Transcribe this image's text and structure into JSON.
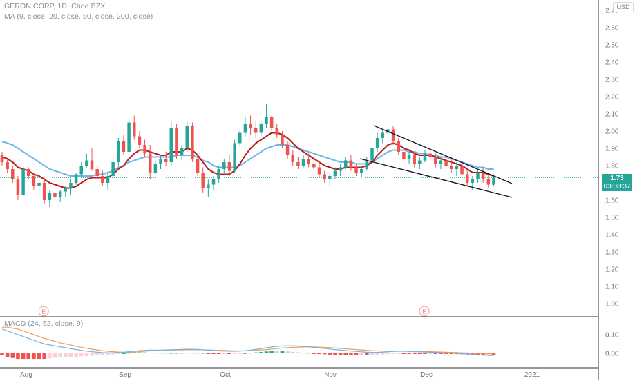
{
  "header": {
    "symbol_line": "GERON CORP, 1D, Cboe BZX",
    "ma_line": "MA (9, close, 20, close, 50, close, 200, close)",
    "currency_button": "USD"
  },
  "price_scale": {
    "last_price": "1.73",
    "countdown": "03:08:37"
  },
  "macd_pane": {
    "label": "MACD (24, 52, close, 9)"
  },
  "earnings_marker_text": "E",
  "colors": {
    "up": "#26a69a",
    "down": "#ef5350",
    "ma_fast": "#b71c1c",
    "ma_slow": "#6fb6e6",
    "macd_line": "#6fb6e6",
    "signal_line": "#f39c53",
    "hist_up": "#26a69a",
    "hist_up_light": "#b2dfdb",
    "hist_down": "#ef5350",
    "hist_down_light": "#ffcdd2",
    "last_price_bg": "#26a69a"
  },
  "chart_data": [
    {
      "type": "candlestick",
      "title": "GERON CORP, 1D, Cboe BZX",
      "x_tick_labels": [
        "Aug",
        "Sep",
        "Oct",
        "Nov",
        "Dec",
        "2021"
      ],
      "y_tick_labels": [
        "1.00",
        "1.10",
        "1.20",
        "1.30",
        "1.40",
        "1.50",
        "1.60",
        "1.70",
        "1.80",
        "1.90",
        "2.00",
        "2.10",
        "2.20",
        "2.30",
        "2.40",
        "2.50",
        "2.60",
        "2.70"
      ],
      "ylim": [
        0.93,
        2.72
      ],
      "last_price": 1.73,
      "candles": [
        [
          1.86,
          1.88,
          1.8,
          1.82
        ],
        [
          1.82,
          1.84,
          1.76,
          1.78
        ],
        [
          1.78,
          1.8,
          1.7,
          1.72
        ],
        [
          1.72,
          1.74,
          1.6,
          1.63
        ],
        [
          1.63,
          1.8,
          1.62,
          1.78
        ],
        [
          1.78,
          1.79,
          1.72,
          1.74
        ],
        [
          1.74,
          1.76,
          1.66,
          1.68
        ],
        [
          1.68,
          1.72,
          1.64,
          1.7
        ],
        [
          1.7,
          1.73,
          1.58,
          1.6
        ],
        [
          1.6,
          1.66,
          1.56,
          1.64
        ],
        [
          1.64,
          1.67,
          1.6,
          1.62
        ],
        [
          1.62,
          1.66,
          1.59,
          1.65
        ],
        [
          1.65,
          1.68,
          1.62,
          1.67
        ],
        [
          1.67,
          1.72,
          1.63,
          1.7
        ],
        [
          1.7,
          1.76,
          1.69,
          1.75
        ],
        [
          1.75,
          1.82,
          1.74,
          1.8
        ],
        [
          1.8,
          1.87,
          1.79,
          1.83
        ],
        [
          1.83,
          1.9,
          1.77,
          1.78
        ],
        [
          1.78,
          1.8,
          1.72,
          1.74
        ],
        [
          1.74,
          1.77,
          1.68,
          1.7
        ],
        [
          1.7,
          1.76,
          1.66,
          1.74
        ],
        [
          1.74,
          1.85,
          1.72,
          1.82
        ],
        [
          1.82,
          1.96,
          1.8,
          1.94
        ],
        [
          1.94,
          1.98,
          1.86,
          1.88
        ],
        [
          1.88,
          2.08,
          1.87,
          2.05
        ],
        [
          2.05,
          2.09,
          1.95,
          1.97
        ],
        [
          1.97,
          2.0,
          1.9,
          1.92
        ],
        [
          1.92,
          1.95,
          1.85,
          1.87
        ],
        [
          1.87,
          1.92,
          1.72,
          1.76
        ],
        [
          1.76,
          1.83,
          1.75,
          1.81
        ],
        [
          1.81,
          1.86,
          1.78,
          1.84
        ],
        [
          1.84,
          1.88,
          1.8,
          1.82
        ],
        [
          1.82,
          2.06,
          1.8,
          2.02
        ],
        [
          2.02,
          2.04,
          1.84,
          1.86
        ],
        [
          1.86,
          1.92,
          1.83,
          1.9
        ],
        [
          1.9,
          2.06,
          1.88,
          2.03
        ],
        [
          2.03,
          2.05,
          1.82,
          1.84
        ],
        [
          1.84,
          1.87,
          1.74,
          1.76
        ],
        [
          1.76,
          1.79,
          1.64,
          1.67
        ],
        [
          1.67,
          1.72,
          1.62,
          1.69
        ],
        [
          1.69,
          1.74,
          1.66,
          1.72
        ],
        [
          1.72,
          1.8,
          1.7,
          1.78
        ],
        [
          1.78,
          1.84,
          1.76,
          1.82
        ],
        [
          1.82,
          1.86,
          1.74,
          1.77
        ],
        [
          1.77,
          1.95,
          1.76,
          1.93
        ],
        [
          1.93,
          2.01,
          1.91,
          1.99
        ],
        [
          1.99,
          2.08,
          1.97,
          2.04
        ],
        [
          2.04,
          2.09,
          1.98,
          2.02
        ],
        [
          2.02,
          2.06,
          1.96,
          1.99
        ],
        [
          1.99,
          2.06,
          1.97,
          2.04
        ],
        [
          2.04,
          2.16,
          2.02,
          2.08
        ],
        [
          2.08,
          2.09,
          2.0,
          2.02
        ],
        [
          2.02,
          2.04,
          1.96,
          1.98
        ],
        [
          1.98,
          2.0,
          1.9,
          1.92
        ],
        [
          1.92,
          1.94,
          1.84,
          1.86
        ],
        [
          1.86,
          1.89,
          1.8,
          1.82
        ],
        [
          1.82,
          1.85,
          1.78,
          1.8
        ],
        [
          1.8,
          1.86,
          1.79,
          1.84
        ],
        [
          1.84,
          1.87,
          1.79,
          1.81
        ],
        [
          1.81,
          1.84,
          1.77,
          1.79
        ],
        [
          1.79,
          1.83,
          1.73,
          1.75
        ],
        [
          1.75,
          1.77,
          1.7,
          1.72
        ],
        [
          1.72,
          1.76,
          1.68,
          1.74
        ],
        [
          1.74,
          1.79,
          1.72,
          1.77
        ],
        [
          1.77,
          1.81,
          1.74,
          1.79
        ],
        [
          1.79,
          1.85,
          1.78,
          1.83
        ],
        [
          1.83,
          1.86,
          1.77,
          1.79
        ],
        [
          1.79,
          1.81,
          1.74,
          1.76
        ],
        [
          1.76,
          1.8,
          1.73,
          1.78
        ],
        [
          1.78,
          1.85,
          1.77,
          1.83
        ],
        [
          1.83,
          1.92,
          1.82,
          1.9
        ],
        [
          1.9,
          1.99,
          1.88,
          1.96
        ],
        [
          1.96,
          2.01,
          1.93,
          1.99
        ],
        [
          1.99,
          2.04,
          1.96,
          2.01
        ],
        [
          2.01,
          2.03,
          1.92,
          1.94
        ],
        [
          1.94,
          1.96,
          1.86,
          1.88
        ],
        [
          1.88,
          1.9,
          1.82,
          1.84
        ],
        [
          1.84,
          1.88,
          1.81,
          1.86
        ],
        [
          1.86,
          1.88,
          1.79,
          1.81
        ],
        [
          1.81,
          1.85,
          1.78,
          1.83
        ],
        [
          1.83,
          1.89,
          1.82,
          1.87
        ],
        [
          1.87,
          1.9,
          1.83,
          1.85
        ],
        [
          1.85,
          1.87,
          1.79,
          1.81
        ],
        [
          1.81,
          1.85,
          1.78,
          1.83
        ],
        [
          1.83,
          1.86,
          1.78,
          1.8
        ],
        [
          1.8,
          1.84,
          1.76,
          1.78
        ],
        [
          1.78,
          1.82,
          1.74,
          1.8
        ],
        [
          1.8,
          1.82,
          1.73,
          1.75
        ],
        [
          1.75,
          1.78,
          1.68,
          1.7
        ],
        [
          1.7,
          1.74,
          1.66,
          1.72
        ],
        [
          1.72,
          1.78,
          1.7,
          1.76
        ],
        [
          1.76,
          1.79,
          1.7,
          1.72
        ],
        [
          1.72,
          1.75,
          1.67,
          1.69
        ],
        [
          1.69,
          1.75,
          1.68,
          1.73
        ]
      ],
      "ma_fast_values": [
        1.85,
        1.84,
        1.82,
        1.79,
        1.78,
        1.77,
        1.75,
        1.74,
        1.72,
        1.7,
        1.69,
        1.68,
        1.67,
        1.67,
        1.68,
        1.7,
        1.72,
        1.73,
        1.73,
        1.73,
        1.73,
        1.75,
        1.78,
        1.8,
        1.84,
        1.87,
        1.89,
        1.89,
        1.88,
        1.87,
        1.86,
        1.86,
        1.88,
        1.88,
        1.88,
        1.9,
        1.89,
        1.86,
        1.82,
        1.78,
        1.76,
        1.75,
        1.75,
        1.75,
        1.77,
        1.81,
        1.86,
        1.9,
        1.93,
        1.95,
        1.97,
        1.99,
        1.99,
        1.98,
        1.96,
        1.93,
        1.9,
        1.88,
        1.86,
        1.84,
        1.82,
        1.8,
        1.79,
        1.78,
        1.78,
        1.79,
        1.79,
        1.79,
        1.79,
        1.8,
        1.82,
        1.86,
        1.89,
        1.92,
        1.93,
        1.92,
        1.9,
        1.89,
        1.87,
        1.86,
        1.86,
        1.86,
        1.85,
        1.84,
        1.83,
        1.82,
        1.81,
        1.8,
        1.78,
        1.76,
        1.76,
        1.76,
        1.75,
        1.74
      ],
      "ma_slow_values": [
        1.94,
        1.93,
        1.92,
        1.9,
        1.88,
        1.86,
        1.84,
        1.82,
        1.8,
        1.78,
        1.77,
        1.76,
        1.75,
        1.74,
        1.74,
        1.74,
        1.74,
        1.74,
        1.75,
        1.75,
        1.76,
        1.77,
        1.79,
        1.8,
        1.82,
        1.83,
        1.84,
        1.85,
        1.85,
        1.85,
        1.85,
        1.85,
        1.85,
        1.86,
        1.86,
        1.86,
        1.86,
        1.85,
        1.83,
        1.82,
        1.8,
        1.79,
        1.79,
        1.79,
        1.79,
        1.8,
        1.82,
        1.84,
        1.86,
        1.88,
        1.9,
        1.91,
        1.92,
        1.92,
        1.92,
        1.91,
        1.9,
        1.89,
        1.88,
        1.87,
        1.86,
        1.85,
        1.84,
        1.83,
        1.82,
        1.82,
        1.82,
        1.81,
        1.81,
        1.81,
        1.82,
        1.84,
        1.86,
        1.88,
        1.89,
        1.89,
        1.89,
        1.88,
        1.88,
        1.87,
        1.87,
        1.86,
        1.86,
        1.85,
        1.85,
        1.84,
        1.83,
        1.82,
        1.81,
        1.8,
        1.79,
        1.79,
        1.78,
        1.78
      ],
      "earnings_marker_bars": [
        8,
        80
      ]
    },
    {
      "type": "macd",
      "title": "MACD (24, 52, close, 9)",
      "y_tick_labels": [
        "0.00",
        "0.10"
      ],
      "ylim": [
        -0.03,
        0.12
      ],
      "macd_values": [
        0.13,
        0.12,
        0.11,
        0.1,
        0.09,
        0.08,
        0.07,
        0.06,
        0.05,
        0.045,
        0.04,
        0.035,
        0.03,
        0.025,
        0.02,
        0.016,
        0.012,
        0.009,
        0.006,
        0.004,
        0.003,
        0.003,
        0.004,
        0.006,
        0.009,
        0.012,
        0.014,
        0.016,
        0.017,
        0.017,
        0.017,
        0.018,
        0.019,
        0.02,
        0.021,
        0.022,
        0.022,
        0.021,
        0.019,
        0.017,
        0.015,
        0.013,
        0.012,
        0.011,
        0.011,
        0.012,
        0.014,
        0.017,
        0.021,
        0.025,
        0.03,
        0.034,
        0.037,
        0.039,
        0.04,
        0.04,
        0.039,
        0.037,
        0.035,
        0.032,
        0.029,
        0.026,
        0.023,
        0.02,
        0.017,
        0.015,
        0.012,
        0.01,
        0.008,
        0.006,
        0.005,
        0.005,
        0.006,
        0.008,
        0.01,
        0.011,
        0.011,
        0.01,
        0.009,
        0.008,
        0.007,
        0.006,
        0.005,
        0.004,
        0.003,
        0.002,
        0.0,
        -0.002,
        -0.004,
        -0.006,
        -0.008,
        -0.01,
        -0.011,
        -0.012
      ],
      "signal_values": [
        0.14,
        0.14,
        0.135,
        0.13,
        0.12,
        0.11,
        0.1,
        0.09,
        0.08,
        0.072,
        0.064,
        0.056,
        0.05,
        0.044,
        0.038,
        0.032,
        0.027,
        0.022,
        0.018,
        0.014,
        0.011,
        0.009,
        0.007,
        0.006,
        0.006,
        0.007,
        0.009,
        0.011,
        0.013,
        0.014,
        0.015,
        0.016,
        0.017,
        0.018,
        0.018,
        0.019,
        0.019,
        0.019,
        0.019,
        0.018,
        0.017,
        0.016,
        0.015,
        0.014,
        0.013,
        0.013,
        0.013,
        0.014,
        0.016,
        0.018,
        0.02,
        0.023,
        0.026,
        0.028,
        0.03,
        0.032,
        0.033,
        0.034,
        0.034,
        0.034,
        0.033,
        0.031,
        0.03,
        0.028,
        0.026,
        0.024,
        0.022,
        0.02,
        0.018,
        0.016,
        0.014,
        0.013,
        0.012,
        0.012,
        0.012,
        0.012,
        0.012,
        0.012,
        0.011,
        0.011,
        0.01,
        0.009,
        0.008,
        0.007,
        0.006,
        0.005,
        0.004,
        0.003,
        0.002,
        0.001,
        0.0,
        -0.001,
        -0.002,
        -0.003
      ]
    }
  ]
}
